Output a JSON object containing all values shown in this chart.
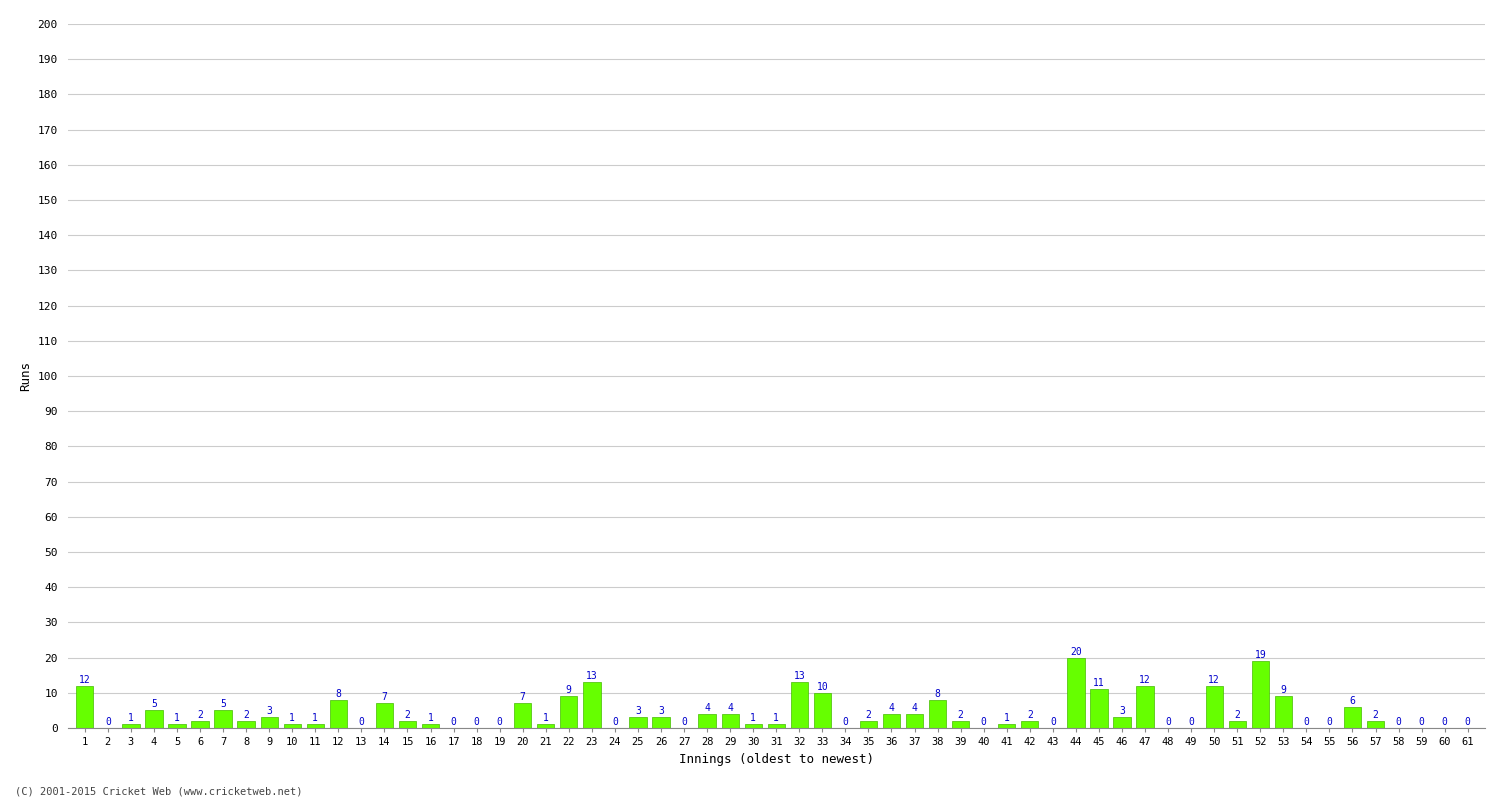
{
  "innings": [
    1,
    2,
    3,
    4,
    5,
    6,
    7,
    8,
    9,
    10,
    11,
    12,
    13,
    14,
    15,
    16,
    17,
    18,
    19,
    20,
    21,
    22,
    23,
    24,
    25,
    26,
    27,
    28,
    29,
    30,
    31,
    32,
    33,
    34,
    35,
    36,
    37,
    38,
    39,
    40,
    41,
    42,
    43,
    44,
    45,
    46,
    47,
    48,
    49,
    50,
    51,
    52,
    53,
    54,
    55,
    56,
    57,
    58,
    59,
    60,
    61
  ],
  "runs": [
    12,
    0,
    1,
    5,
    1,
    2,
    5,
    2,
    3,
    1,
    1,
    8,
    0,
    7,
    2,
    1,
    0,
    0,
    0,
    7,
    1,
    9,
    13,
    0,
    3,
    3,
    0,
    4,
    4,
    1,
    1,
    13,
    10,
    0,
    2,
    4,
    4,
    8,
    2,
    0,
    1,
    2,
    0,
    20,
    11,
    3,
    12,
    0,
    0,
    12,
    2,
    19,
    9,
    0,
    0,
    6,
    2,
    0,
    0,
    0,
    0
  ],
  "bar_color": "#66ff00",
  "bar_edge_color": "#44bb00",
  "label_color": "#0000cc",
  "ylabel": "Runs",
  "xlabel": "Innings (oldest to newest)",
  "ylim": [
    0,
    200
  ],
  "yticks": [
    0,
    10,
    20,
    30,
    40,
    50,
    60,
    70,
    80,
    90,
    100,
    110,
    120,
    130,
    140,
    150,
    160,
    170,
    180,
    190,
    200
  ],
  "background_color": "#ffffff",
  "grid_color": "#cccccc",
  "footer": "(C) 2001-2015 Cricket Web (www.cricketweb.net)"
}
